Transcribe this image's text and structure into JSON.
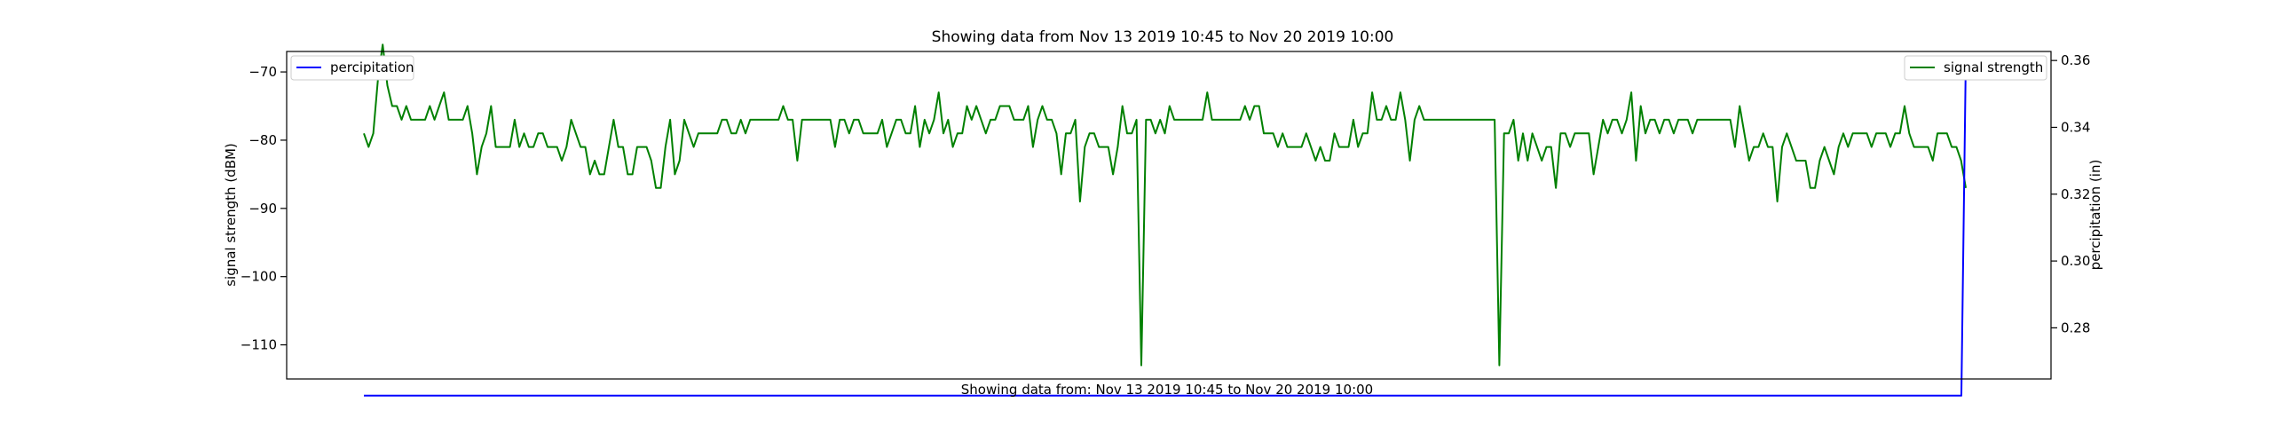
{
  "chart_data": {
    "type": "line",
    "title": "Showing data from Nov 13 2019 10:45 to Nov 20 2019 10:00",
    "xlabel": "Showing data from: Nov 13 2019 10:45 to Nov 20 2019 10:00",
    "ylabel_left": "signal strength (dBM)",
    "ylabel_right": "percipitation (in)",
    "y_left": {
      "ticks": [
        -70,
        -80,
        -90,
        -100,
        -110
      ],
      "tick_labels": [
        "−70",
        "−80",
        "−90",
        "−100",
        "−110"
      ],
      "lim": [
        -115,
        -67
      ]
    },
    "y_right": {
      "ticks": [
        0.36,
        0.34,
        0.32,
        0.3,
        0.28
      ],
      "tick_labels": [
        "0.36",
        "0.34",
        "0.32",
        "0.30",
        "0.28"
      ],
      "lim": [
        0.2647,
        0.3627
      ]
    },
    "grid": false,
    "series": [
      {
        "name": "signal strength",
        "axis": "left",
        "color": "#008000",
        "legend_position": "top-right",
        "values": [
          -79,
          -81,
          -79,
          -71,
          -66,
          -72,
          -75,
          -75,
          -77,
          -75,
          -77,
          -77,
          -77,
          -77,
          -75,
          -77,
          -75,
          -73,
          -77,
          -77,
          -77,
          -77,
          -75,
          -79,
          -85,
          -81,
          -79,
          -75,
          -81,
          -81,
          -81,
          -81,
          -77,
          -81,
          -79,
          -81,
          -81,
          -79,
          -79,
          -81,
          -81,
          -81,
          -83,
          -81,
          -77,
          -79,
          -81,
          -81,
          -85,
          -83,
          -85,
          -85,
          -81,
          -77,
          -81,
          -81,
          -85,
          -85,
          -81,
          -81,
          -81,
          -83,
          -87,
          -87,
          -81,
          -77,
          -85,
          -83,
          -77,
          -79,
          -81,
          -79,
          -79,
          -79,
          -79,
          -79,
          -77,
          -77,
          -79,
          -79,
          -77,
          -79,
          -77,
          -77,
          -77,
          -77,
          -77,
          -77,
          -77,
          -75,
          -77,
          -77,
          -83,
          -77,
          -77,
          -77,
          -77,
          -77,
          -77,
          -77,
          -81,
          -77,
          -77,
          -79,
          -77,
          -77,
          -79,
          -79,
          -79,
          -79,
          -77,
          -81,
          -79,
          -77,
          -77,
          -79,
          -79,
          -75,
          -81,
          -77,
          -79,
          -77,
          -73,
          -79,
          -77,
          -81,
          -79,
          -79,
          -75,
          -77,
          -75,
          -77,
          -79,
          -77,
          -77,
          -75,
          -75,
          -75,
          -77,
          -77,
          -77,
          -75,
          -81,
          -77,
          -75,
          -77,
          -77,
          -79,
          -85,
          -79,
          -79,
          -77,
          -89,
          -81,
          -79,
          -79,
          -81,
          -81,
          -81,
          -85,
          -81,
          -75,
          -79,
          -79,
          -77,
          -113,
          -77,
          -77,
          -79,
          -77,
          -79,
          -75,
          -77,
          -77,
          -77,
          -77,
          -77,
          -77,
          -77,
          -73,
          -77,
          -77,
          -77,
          -77,
          -77,
          -77,
          -77,
          -75,
          -77,
          -75,
          -75,
          -79,
          -79,
          -79,
          -81,
          -79,
          -81,
          -81,
          -81,
          -81,
          -79,
          -81,
          -83,
          -81,
          -83,
          -83,
          -79,
          -81,
          -81,
          -81,
          -77,
          -81,
          -79,
          -79,
          -73,
          -77,
          -77,
          -75,
          -77,
          -77,
          -73,
          -77,
          -83,
          -77,
          -75,
          -77,
          -77,
          -77,
          -77,
          -77,
          -77,
          -77,
          -77,
          -77,
          -77,
          -77,
          -77,
          -77,
          -77,
          -77,
          -77,
          -113,
          -79,
          -79,
          -77,
          -83,
          -79,
          -83,
          -79,
          -81,
          -83,
          -81,
          -81,
          -87,
          -79,
          -79,
          -81,
          -79,
          -79,
          -79,
          -79,
          -85,
          -81,
          -77,
          -79,
          -77,
          -77,
          -79,
          -77,
          -73,
          -83,
          -75,
          -79,
          -77,
          -77,
          -79,
          -77,
          -77,
          -79,
          -77,
          -77,
          -77,
          -79,
          -77,
          -77,
          -77,
          -77,
          -77,
          -77,
          -77,
          -77,
          -81,
          -75,
          -79,
          -83,
          -81,
          -81,
          -79,
          -81,
          -81,
          -89,
          -81,
          -79,
          -81,
          -83,
          -83,
          -83,
          -87,
          -87,
          -83,
          -81,
          -83,
          -85,
          -81,
          -79,
          -81,
          -79,
          -79,
          -79,
          -79,
          -81,
          -79,
          -79,
          -79,
          -81,
          -79,
          -79,
          -75,
          -79,
          -81,
          -81,
          -81,
          -81,
          -83,
          -79,
          -79,
          -79,
          -81,
          -81,
          -83,
          -87
        ]
      },
      {
        "name": "percipitation",
        "axis": "right",
        "color": "#0000ff",
        "legend_position": "top-left",
        "start": 0.2597,
        "final_rise": {
          "from": 0.2597,
          "to": 0.3605
        },
        "point_count": 360
      }
    ]
  }
}
